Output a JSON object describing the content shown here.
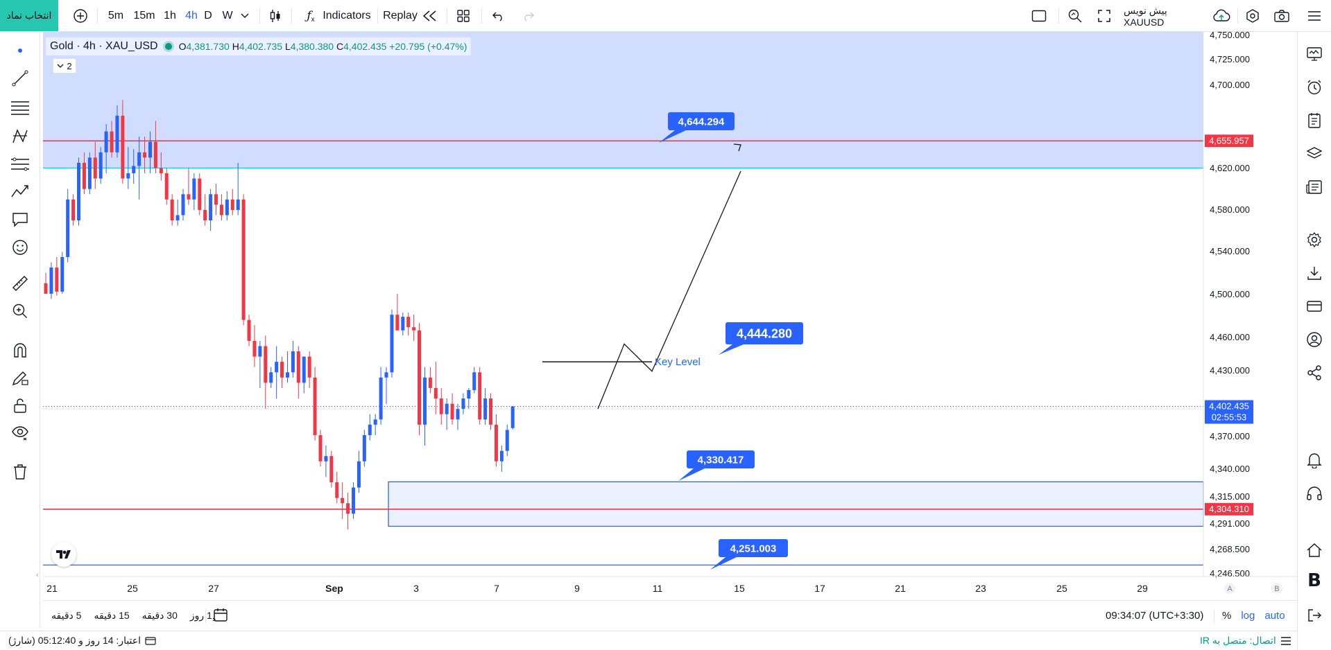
{
  "toolbar": {
    "symbol_select": "انتخاب نماد",
    "intervals": [
      "5m",
      "15m",
      "1h",
      "4h",
      "D",
      "W"
    ],
    "active_interval": "4h",
    "indicators_label": "Indicators",
    "replay_label": "Replay",
    "account_label": "پیش نویس XAUUSD"
  },
  "legend": {
    "title": "Gold · 4h · XAU_USD",
    "open_key": "O",
    "open": "4,381.730",
    "high_key": "H",
    "high": "4,402.735",
    "low_key": "L",
    "low": "4,380.380",
    "close_key": "C",
    "close": "4,402.435",
    "change": "+20.795 (+0.47%)",
    "collapsed_count": "2"
  },
  "price_axis": {
    "ticks": [
      "4,750.000",
      "4,725.000",
      "4,700.000",
      "4,620.000",
      "4,580.000",
      "4,540.000",
      "4,500.000",
      "4,460.000",
      "4,430.000",
      "4,370.000",
      "4,340.000",
      "4,315.000",
      "4,291.000",
      "4,268.500",
      "4,246.500"
    ],
    "tags": {
      "upper_resistance": "4,655.957",
      "current_price": "4,402.435",
      "countdown": "02:55:53",
      "lower_support": "4,304.310"
    },
    "ab_labels": [
      "A",
      "B"
    ]
  },
  "time_axis": {
    "labels": [
      "21",
      "25",
      "27",
      "Sep",
      "3",
      "7",
      "9",
      "11",
      "15",
      "17",
      "21",
      "23",
      "25",
      "29"
    ]
  },
  "annotations": {
    "target_high": "4,644.294",
    "key_level_value": "4,444.280",
    "key_level_text": "Key Level",
    "support_upper": "4,330.417",
    "support_lower": "4,251.003"
  },
  "bottom_bar": {
    "ranges": [
      "5 دقیقه",
      "15 دقیقه",
      "30 دقیقه",
      "1 روز"
    ],
    "clock": "09:34:07 (UTC+3:30)",
    "percent_label": "%",
    "log_label": "log",
    "auto_label": "auto"
  },
  "status": {
    "credit_text": "اعتبار: 14 روز و 05:12:40 (شارژ)",
    "connection_text": "اتصال: متصل به IR"
  },
  "colors": {
    "bull": "#2962ff",
    "bear": "#f23645",
    "accent": "#2962ff",
    "symbol_btn": "#26c6b0"
  },
  "chart_data": {
    "type": "candlestick",
    "symbol": "XAU_USD",
    "interval": "4h",
    "y_range": [
      4240,
      4760
    ],
    "x_labels": [
      "21",
      "25",
      "27",
      "Sep",
      "3",
      "7",
      "9",
      "11",
      "15",
      "17",
      "21",
      "23",
      "25",
      "29"
    ],
    "candles": [
      {
        "o": 4520,
        "h": 4530,
        "l": 4510,
        "c": 4510
      },
      {
        "o": 4510,
        "h": 4540,
        "l": 4505,
        "c": 4535
      },
      {
        "o": 4535,
        "h": 4545,
        "l": 4508,
        "c": 4512
      },
      {
        "o": 4512,
        "h": 4550,
        "l": 4510,
        "c": 4545
      },
      {
        "o": 4545,
        "h": 4610,
        "l": 4540,
        "c": 4600
      },
      {
        "o": 4600,
        "h": 4605,
        "l": 4575,
        "c": 4580
      },
      {
        "o": 4580,
        "h": 4640,
        "l": 4575,
        "c": 4635
      },
      {
        "o": 4635,
        "h": 4645,
        "l": 4605,
        "c": 4610
      },
      {
        "o": 4610,
        "h": 4645,
        "l": 4605,
        "c": 4640
      },
      {
        "o": 4640,
        "h": 4655,
        "l": 4610,
        "c": 4620
      },
      {
        "o": 4620,
        "h": 4650,
        "l": 4615,
        "c": 4645
      },
      {
        "o": 4645,
        "h": 4672,
        "l": 4625,
        "c": 4665
      },
      {
        "o": 4665,
        "h": 4675,
        "l": 4640,
        "c": 4645
      },
      {
        "o": 4645,
        "h": 4690,
        "l": 4640,
        "c": 4680
      },
      {
        "o": 4680,
        "h": 4695,
        "l": 4615,
        "c": 4620
      },
      {
        "o": 4620,
        "h": 4650,
        "l": 4610,
        "c": 4625
      },
      {
        "o": 4625,
        "h": 4648,
        "l": 4615,
        "c": 4632
      },
      {
        "o": 4632,
        "h": 4660,
        "l": 4600,
        "c": 4645
      },
      {
        "o": 4645,
        "h": 4660,
        "l": 4625,
        "c": 4640
      },
      {
        "o": 4640,
        "h": 4665,
        "l": 4625,
        "c": 4655
      },
      {
        "o": 4655,
        "h": 4675,
        "l": 4625,
        "c": 4630
      },
      {
        "o": 4630,
        "h": 4645,
        "l": 4618,
        "c": 4625
      },
      {
        "o": 4625,
        "h": 4630,
        "l": 4595,
        "c": 4600
      },
      {
        "o": 4600,
        "h": 4605,
        "l": 4575,
        "c": 4580
      },
      {
        "o": 4580,
        "h": 4600,
        "l": 4575,
        "c": 4585
      },
      {
        "o": 4585,
        "h": 4610,
        "l": 4580,
        "c": 4605
      },
      {
        "o": 4605,
        "h": 4630,
        "l": 4595,
        "c": 4600
      },
      {
        "o": 4600,
        "h": 4625,
        "l": 4590,
        "c": 4620
      },
      {
        "o": 4620,
        "h": 4625,
        "l": 4585,
        "c": 4590
      },
      {
        "o": 4590,
        "h": 4605,
        "l": 4575,
        "c": 4580
      },
      {
        "o": 4580,
        "h": 4610,
        "l": 4570,
        "c": 4605
      },
      {
        "o": 4605,
        "h": 4615,
        "l": 4585,
        "c": 4595
      },
      {
        "o": 4595,
        "h": 4605,
        "l": 4580,
        "c": 4585
      },
      {
        "o": 4585,
        "h": 4608,
        "l": 4580,
        "c": 4600
      },
      {
        "o": 4600,
        "h": 4610,
        "l": 4585,
        "c": 4590
      },
      {
        "o": 4590,
        "h": 4635,
        "l": 4585,
        "c": 4600
      },
      {
        "o": 4600,
        "h": 4605,
        "l": 4480,
        "c": 4485
      },
      {
        "o": 4485,
        "h": 4490,
        "l": 4460,
        "c": 4465
      },
      {
        "o": 4465,
        "h": 4480,
        "l": 4440,
        "c": 4450
      },
      {
        "o": 4450,
        "h": 4465,
        "l": 4420,
        "c": 4460
      },
      {
        "o": 4460,
        "h": 4470,
        "l": 4400,
        "c": 4425
      },
      {
        "o": 4425,
        "h": 4440,
        "l": 4420,
        "c": 4435
      },
      {
        "o": 4435,
        "h": 4460,
        "l": 4410,
        "c": 4445
      },
      {
        "o": 4445,
        "h": 4450,
        "l": 4420,
        "c": 4430
      },
      {
        "o": 4430,
        "h": 4455,
        "l": 4425,
        "c": 4435
      },
      {
        "o": 4435,
        "h": 4465,
        "l": 4430,
        "c": 4455
      },
      {
        "o": 4455,
        "h": 4460,
        "l": 4410,
        "c": 4425
      },
      {
        "o": 4425,
        "h": 4450,
        "l": 4415,
        "c": 4450
      },
      {
        "o": 4450,
        "h": 4455,
        "l": 4420,
        "c": 4430
      },
      {
        "o": 4430,
        "h": 4440,
        "l": 4370,
        "c": 4375
      },
      {
        "o": 4375,
        "h": 4380,
        "l": 4345,
        "c": 4350
      },
      {
        "o": 4350,
        "h": 4365,
        "l": 4335,
        "c": 4355
      },
      {
        "o": 4355,
        "h": 4360,
        "l": 4325,
        "c": 4330
      },
      {
        "o": 4330,
        "h": 4340,
        "l": 4310,
        "c": 4315
      },
      {
        "o": 4315,
        "h": 4330,
        "l": 4295,
        "c": 4310
      },
      {
        "o": 4310,
        "h": 4320,
        "l": 4285,
        "c": 4300
      },
      {
        "o": 4300,
        "h": 4330,
        "l": 4295,
        "c": 4325
      },
      {
        "o": 4325,
        "h": 4360,
        "l": 4320,
        "c": 4350
      },
      {
        "o": 4350,
        "h": 4380,
        "l": 4345,
        "c": 4375
      },
      {
        "o": 4375,
        "h": 4395,
        "l": 4370,
        "c": 4385
      },
      {
        "o": 4385,
        "h": 4395,
        "l": 4375,
        "c": 4390
      },
      {
        "o": 4390,
        "h": 4440,
        "l": 4385,
        "c": 4430
      },
      {
        "o": 4430,
        "h": 4440,
        "l": 4405,
        "c": 4435
      },
      {
        "o": 4435,
        "h": 4495,
        "l": 4430,
        "c": 4490
      },
      {
        "o": 4490,
        "h": 4510,
        "l": 4478,
        "c": 4475
      },
      {
        "o": 4475,
        "h": 4492,
        "l": 4470,
        "c": 4488
      },
      {
        "o": 4488,
        "h": 4492,
        "l": 4470,
        "c": 4478
      },
      {
        "o": 4478,
        "h": 4490,
        "l": 4465,
        "c": 4475
      },
      {
        "o": 4475,
        "h": 4482,
        "l": 4375,
        "c": 4385
      },
      {
        "o": 4385,
        "h": 4440,
        "l": 4365,
        "c": 4430
      },
      {
        "o": 4430,
        "h": 4440,
        "l": 4415,
        "c": 4420
      },
      {
        "o": 4420,
        "h": 4445,
        "l": 4395,
        "c": 4410
      },
      {
        "o": 4410,
        "h": 4420,
        "l": 4385,
        "c": 4395
      },
      {
        "o": 4395,
        "h": 4410,
        "l": 4380,
        "c": 4405
      },
      {
        "o": 4405,
        "h": 4415,
        "l": 4385,
        "c": 4390
      },
      {
        "o": 4390,
        "h": 4405,
        "l": 4380,
        "c": 4400
      },
      {
        "o": 4400,
        "h": 4415,
        "l": 4395,
        "c": 4410
      },
      {
        "o": 4410,
        "h": 4420,
        "l": 4400,
        "c": 4418
      },
      {
        "o": 4418,
        "h": 4440,
        "l": 4415,
        "c": 4435
      },
      {
        "o": 4435,
        "h": 4440,
        "l": 4385,
        "c": 4390
      },
      {
        "o": 4390,
        "h": 4420,
        "l": 4385,
        "c": 4410
      },
      {
        "o": 4410,
        "h": 4415,
        "l": 4380,
        "c": 4385
      },
      {
        "o": 4385,
        "h": 4395,
        "l": 4345,
        "c": 4350
      },
      {
        "o": 4350,
        "h": 4365,
        "l": 4340,
        "c": 4360
      },
      {
        "o": 4360,
        "h": 4385,
        "l": 4355,
        "c": 4380
      },
      {
        "o": 4381.73,
        "h": 4402.735,
        "l": 4380.38,
        "c": 4402.435
      }
    ]
  }
}
